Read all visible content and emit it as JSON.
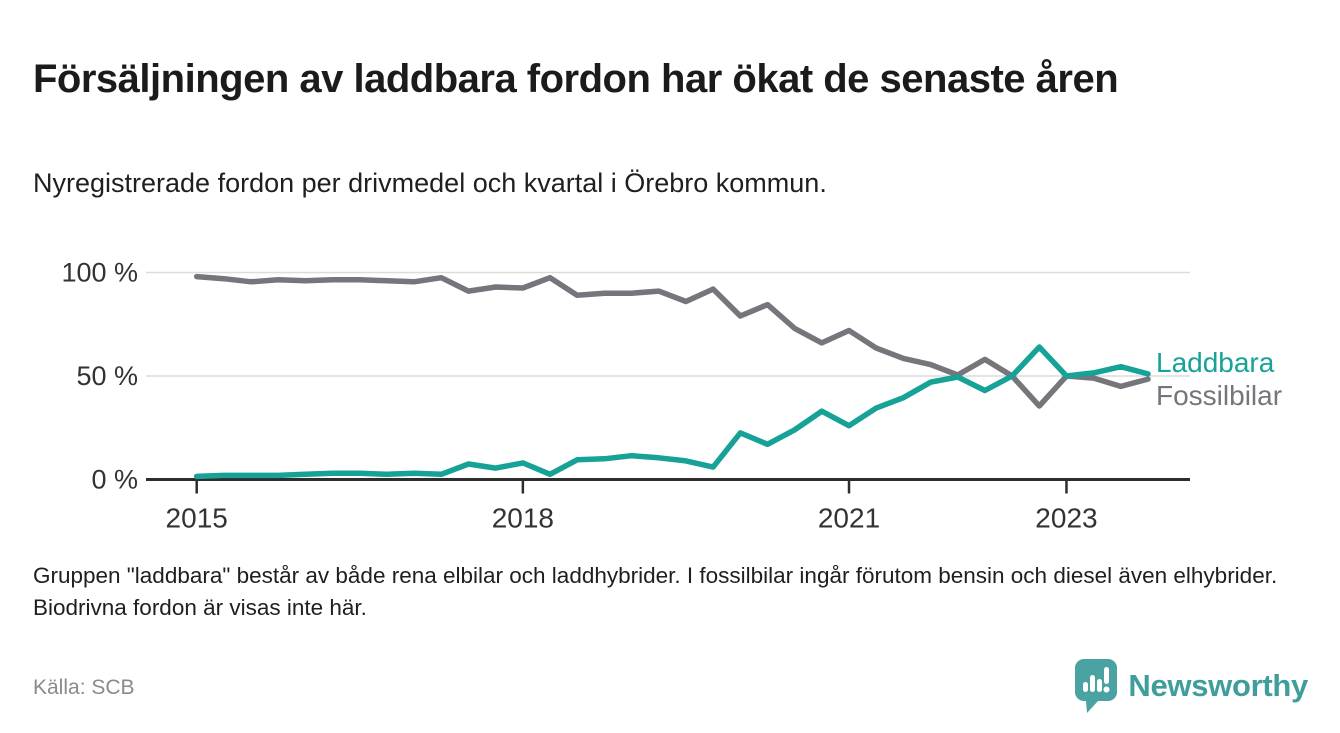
{
  "header": {
    "title": "Försäljningen av laddbara fordon har ökat de senaste åren",
    "subtitle": "Nyregistrerade fordon per drivmedel och kvartal i Örebro kommun."
  },
  "chart_data": {
    "type": "line",
    "title": "Försäljningen av laddbara fordon har ökat de senaste åren",
    "subtitle": "Nyregistrerade fordon per drivmedel och kvartal i Örebro kommun.",
    "y_unit": "%",
    "ylim": [
      0,
      105
    ],
    "y_ticks": [
      0,
      50,
      100
    ],
    "y_tick_labels": [
      "0 %",
      "50 %",
      "100 %"
    ],
    "grid": "horizontal-only",
    "legend_position": "right-end-of-lines",
    "x_categories": [
      "2015 Q1",
      "2015 Q2",
      "2015 Q3",
      "2015 Q4",
      "2016 Q1",
      "2016 Q2",
      "2016 Q3",
      "2016 Q4",
      "2017 Q1",
      "2017 Q2",
      "2017 Q3",
      "2017 Q4",
      "2018 Q1",
      "2018 Q2",
      "2018 Q3",
      "2018 Q4",
      "2019 Q1",
      "2019 Q2",
      "2019 Q3",
      "2019 Q4",
      "2020 Q1",
      "2020 Q2",
      "2020 Q3",
      "2020 Q4",
      "2021 Q1",
      "2021 Q2",
      "2021 Q3",
      "2021 Q4",
      "2022 Q1",
      "2022 Q2",
      "2022 Q3",
      "2022 Q4",
      "2023 Q1",
      "2023 Q2",
      "2023 Q3",
      "2023 Q4"
    ],
    "x_tick_labels": [
      "2015",
      "2018",
      "2021",
      "2023"
    ],
    "x_tick_positions": [
      0,
      12,
      24,
      32
    ],
    "series": [
      {
        "name": "Laddbara",
        "color": "#16a296",
        "values": [
          1.5,
          2,
          2,
          2,
          2.5,
          3,
          3,
          2.5,
          3,
          2.5,
          7.5,
          5.5,
          8,
          2.5,
          9.5,
          10,
          11.5,
          10.5,
          9,
          6,
          22.5,
          17,
          24,
          33,
          26,
          34.5,
          39.5,
          47,
          49.5,
          43,
          50,
          64,
          50,
          51.5,
          54.5,
          51
        ]
      },
      {
        "name": "Fossilbilar",
        "color": "#76757b",
        "values": [
          98,
          97,
          95.5,
          96.5,
          96,
          96.5,
          96.5,
          96,
          95.5,
          97.5,
          91,
          93,
          92.5,
          97.5,
          89,
          90,
          90,
          91,
          86,
          92,
          79,
          84.5,
          73,
          66,
          72,
          63.5,
          58.5,
          55.5,
          50.5,
          58,
          50,
          35.5,
          50,
          49,
          45,
          48.5
        ]
      }
    ]
  },
  "footnote": "Gruppen \"laddbara\" består av både rena elbilar och laddhybrider. I fossilbilar ingår förutom bensin och diesel även elhybrider. Biodrivna fordon är visas inte här.",
  "source": "Källa: SCB",
  "logo": {
    "text": "Newsworthy",
    "icon": "newsworthy-pin-chart-icon",
    "color": "#3f9e9c",
    "icon_color": "#4aa3a2"
  }
}
